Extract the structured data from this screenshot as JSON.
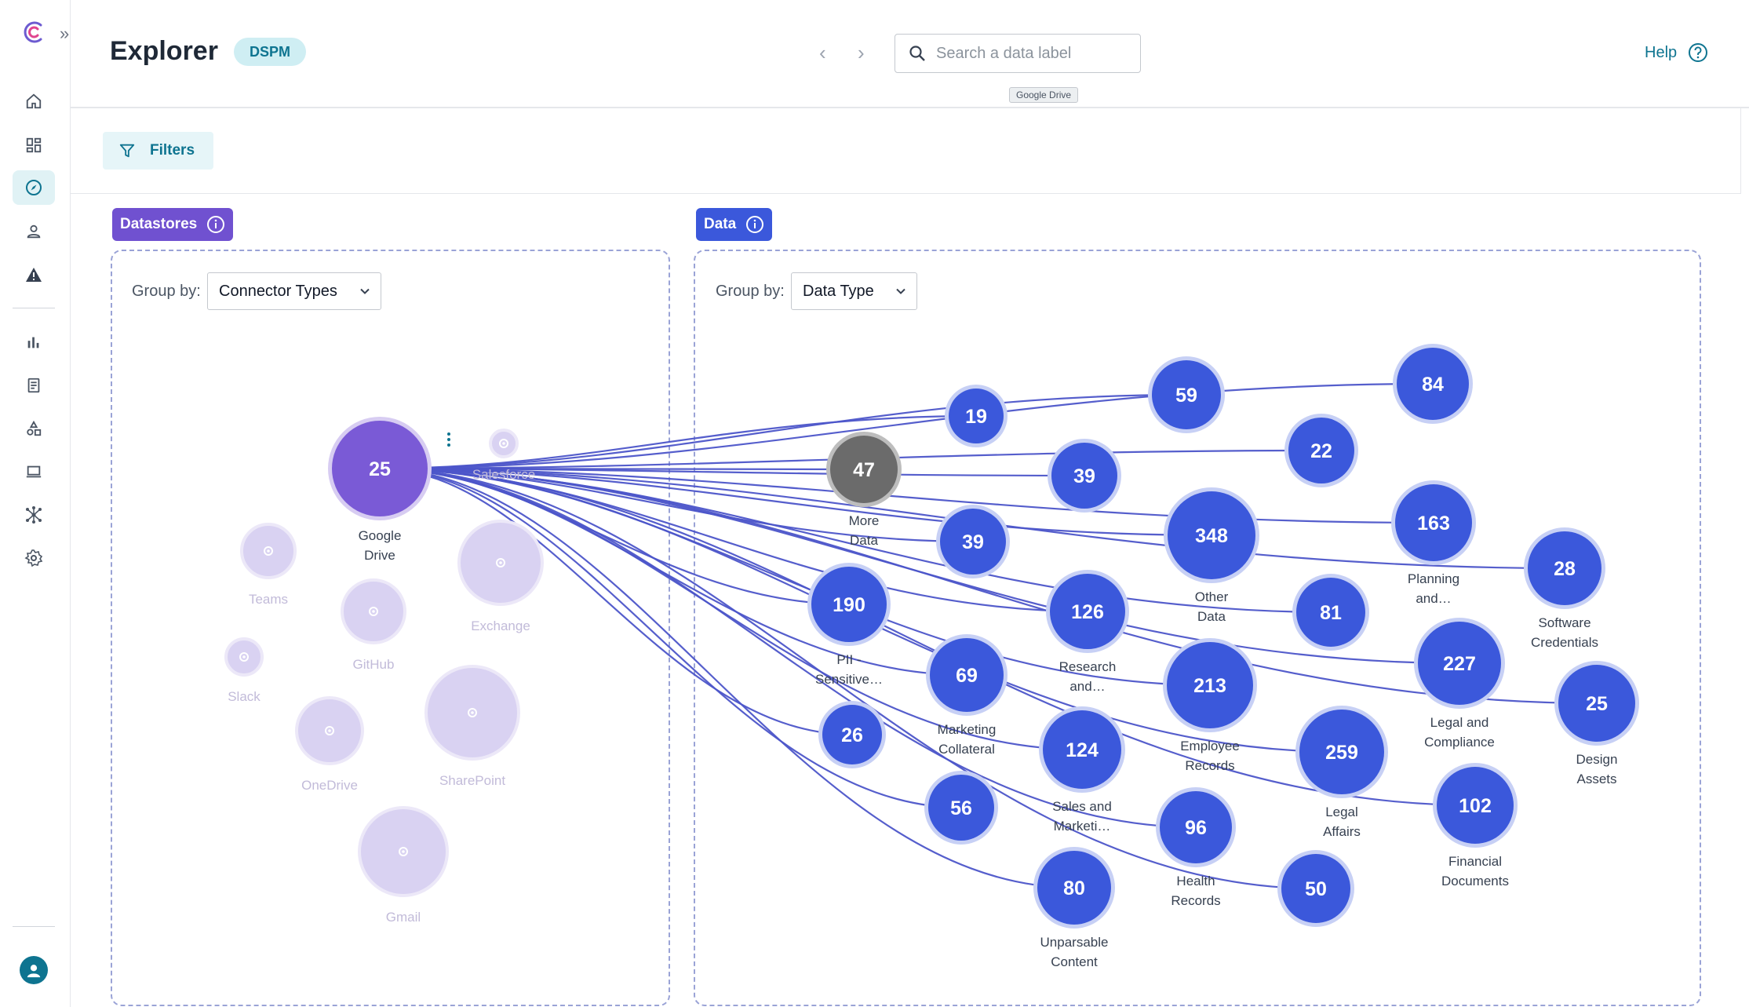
{
  "header": {
    "title": "Explorer",
    "badge": "DSPM",
    "search_placeholder": "Search a data label",
    "tooltip": "Google Drive",
    "help_label": "Help"
  },
  "sidebar": {
    "items": [
      "home-icon",
      "dashboard-icon",
      "compass-icon",
      "user-icon",
      "alert-icon",
      "bar-chart-icon",
      "report-icon",
      "shapes-icon",
      "laptop-icon",
      "network-icon",
      "gear-icon"
    ],
    "active": "compass-icon"
  },
  "filters": {
    "label": "Filters"
  },
  "colors": {
    "accent": "#0e7490",
    "datastore": "#7a5ad6",
    "data": "#3b58db",
    "edge": "#4c55c9",
    "ghost": "#d9d2f2"
  },
  "datastores": {
    "label": "Datastores",
    "group_by_label": "Group by:",
    "group_by_value": "Connector Types",
    "primary": {
      "count": "25",
      "label": [
        "Google",
        "Drive"
      ]
    },
    "others": [
      {
        "id": "salesforce",
        "label": "Salesforce"
      },
      {
        "id": "teams",
        "label": "Teams"
      },
      {
        "id": "exchange",
        "label": "Exchange"
      },
      {
        "id": "github",
        "label": "GitHub"
      },
      {
        "id": "slack",
        "label": "Slack"
      },
      {
        "id": "onedrive",
        "label": "OneDrive"
      },
      {
        "id": "sharepoint",
        "label": "SharePoint"
      },
      {
        "id": "gmail",
        "label": "Gmail"
      }
    ]
  },
  "data_panel": {
    "label": "Data",
    "group_by_label": "Group by:",
    "group_by_value": "Data Type",
    "nodes": [
      {
        "id": "n19",
        "value": "19",
        "label": []
      },
      {
        "id": "n59",
        "value": "59",
        "label": []
      },
      {
        "id": "n84",
        "value": "84",
        "label": []
      },
      {
        "id": "n47",
        "value": "47",
        "label": [
          "More",
          "Data"
        ],
        "muted": true
      },
      {
        "id": "n39a",
        "value": "39",
        "label": []
      },
      {
        "id": "n22",
        "value": "22",
        "label": []
      },
      {
        "id": "n39b",
        "value": "39",
        "label": []
      },
      {
        "id": "n348",
        "value": "348",
        "label": [
          "Other",
          "Data"
        ]
      },
      {
        "id": "n163",
        "value": "163",
        "label": [
          "Planning",
          "and…"
        ]
      },
      {
        "id": "n28",
        "value": "28",
        "label": [
          "Software",
          "Credentials"
        ]
      },
      {
        "id": "n190",
        "value": "190",
        "label": [
          "PII -",
          "Sensitive…"
        ]
      },
      {
        "id": "n126",
        "value": "126",
        "label": [
          "Research",
          "and…"
        ]
      },
      {
        "id": "n81",
        "value": "81",
        "label": []
      },
      {
        "id": "n69",
        "value": "69",
        "label": [
          "Marketing",
          "Collateral"
        ]
      },
      {
        "id": "n213",
        "value": "213",
        "label": [
          "Employee",
          "Records"
        ]
      },
      {
        "id": "n227",
        "value": "227",
        "label": [
          "Legal and",
          "Compliance"
        ]
      },
      {
        "id": "n25",
        "value": "25",
        "label": [
          "Design",
          "Assets"
        ]
      },
      {
        "id": "n26",
        "value": "26",
        "label": []
      },
      {
        "id": "n124",
        "value": "124",
        "label": [
          "Sales and",
          "Marketi…"
        ]
      },
      {
        "id": "n259",
        "value": "259",
        "label": [
          "Legal",
          "Affairs"
        ]
      },
      {
        "id": "n102",
        "value": "102",
        "label": [
          "Financial",
          "Documents"
        ]
      },
      {
        "id": "n56",
        "value": "56",
        "label": []
      },
      {
        "id": "n96",
        "value": "96",
        "label": [
          "Health",
          "Records"
        ]
      },
      {
        "id": "n50",
        "value": "50",
        "label": []
      },
      {
        "id": "n80",
        "value": "80",
        "label": [
          "Unparsable",
          "Content"
        ]
      }
    ]
  }
}
